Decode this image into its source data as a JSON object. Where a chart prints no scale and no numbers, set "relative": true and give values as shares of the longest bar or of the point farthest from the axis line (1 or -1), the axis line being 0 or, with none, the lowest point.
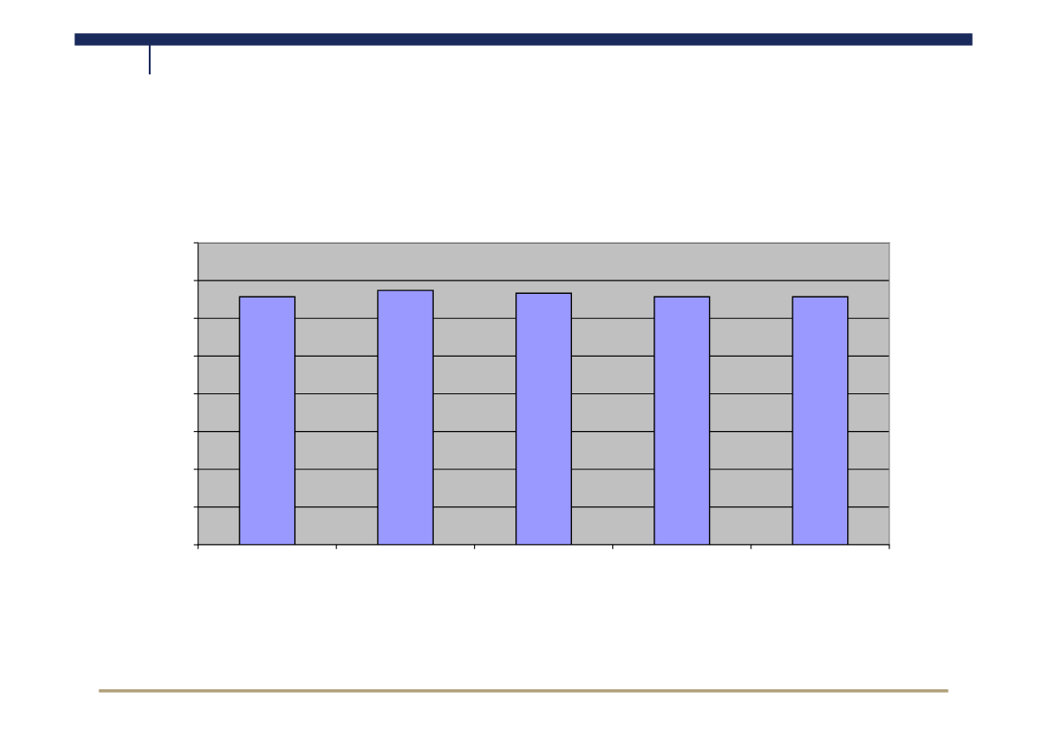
{
  "chart_data": {
    "type": "bar",
    "relative": true,
    "categories": [
      null,
      null,
      null,
      null,
      null
    ],
    "values": [
      0.975,
      1,
      0.989,
      0.975,
      0.975
    ],
    "color": "#9999ff",
    "grid": "y"
  }
}
